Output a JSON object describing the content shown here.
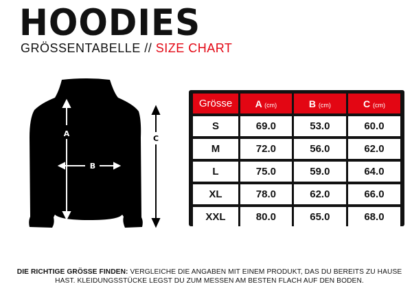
{
  "title": "HOODIES",
  "subtitle": {
    "de": "GRÖSSENTABELLE //",
    "en": "SIZE CHART"
  },
  "colors": {
    "accent": "#e30613",
    "dark": "#111111"
  },
  "diagram": {
    "labels": {
      "a": "A",
      "b": "B",
      "c": "C"
    }
  },
  "table": {
    "headers": [
      {
        "label": "Grösse",
        "unit": ""
      },
      {
        "label": "A",
        "unit": "(cm)"
      },
      {
        "label": "B",
        "unit": "(cm)"
      },
      {
        "label": "C",
        "unit": "(cm)"
      }
    ],
    "rows": [
      [
        "S",
        "69.0",
        "53.0",
        "60.0"
      ],
      [
        "M",
        "72.0",
        "56.0",
        "62.0"
      ],
      [
        "L",
        "75.0",
        "59.0",
        "64.0"
      ],
      [
        "XL",
        "78.0",
        "62.0",
        "66.0"
      ],
      [
        "XXL",
        "80.0",
        "65.0",
        "68.0"
      ]
    ]
  },
  "note": {
    "bold": "DIE RICHTIGE GRÖSSE FINDEN:",
    "text": " VERGLEICHE DIE ANGABEN MIT EINEM PRODUKT, DAS DU BEREITS ZU HAUSE HAST. KLEIDUNGSSTÜCKE LEGST DU ZUM MESSEN AM BESTEN FLACH AUF DEN BODEN."
  }
}
